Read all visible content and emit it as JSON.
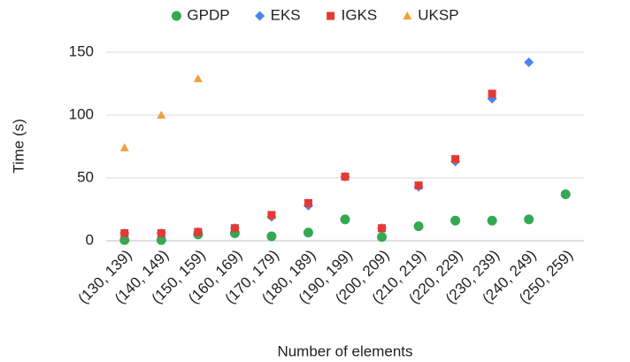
{
  "chart_data": {
    "type": "scatter",
    "x_label": "Number of elements",
    "y_label": "Time (s)",
    "categories": [
      "(130, 139)",
      "(140, 149)",
      "(150, 159)",
      "(160, 169)",
      "(170, 179)",
      "(180, 189)",
      "(190, 199)",
      "(200, 209)",
      "(210, 219)",
      "(220, 229)",
      "(230, 239)",
      "(240, 249)",
      "(250, 259)"
    ],
    "series": [
      {
        "name": "GPDP",
        "color": "#34a853",
        "marker": "circle",
        "values": [
          0.5,
          0.5,
          5,
          6,
          3.5,
          6.5,
          17,
          3,
          11.5,
          16,
          16,
          17,
          37
        ]
      },
      {
        "name": "EKS",
        "color": "#4a86e8",
        "marker": "diamond",
        "values": [
          6,
          6,
          7,
          10,
          19,
          28,
          51,
          10,
          43,
          63,
          113,
          142,
          null
        ]
      },
      {
        "name": "IGKS",
        "color": "#e53935",
        "marker": "square",
        "values": [
          6,
          6,
          7,
          10,
          20.5,
          30,
          51,
          10,
          44,
          65,
          117,
          null,
          null
        ]
      },
      {
        "name": "UKSP",
        "color": "#f0a03c",
        "marker": "triangle",
        "values": [
          74,
          100,
          129,
          null,
          null,
          null,
          null,
          null,
          null,
          null,
          null,
          null,
          null
        ]
      }
    ],
    "ylim": [
      0,
      150
    ],
    "yticks": [
      0,
      50,
      100,
      150
    ],
    "grid": true,
    "legend": "top"
  }
}
